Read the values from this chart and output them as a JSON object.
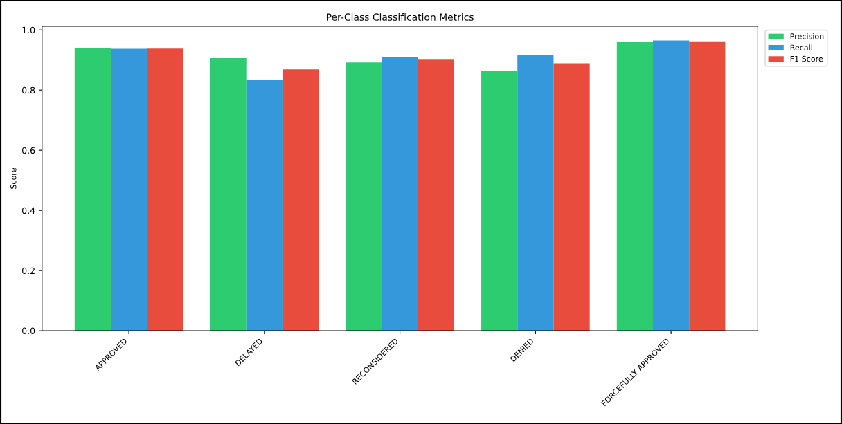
{
  "chart_data": {
    "type": "bar",
    "title": "Per-Class Classification Metrics",
    "ylabel": "Score",
    "categories": [
      "APPROVED",
      "DELAYED",
      "RECONSIDERED",
      "DENIED",
      "FORCEFULLY APPROVED"
    ],
    "series": [
      {
        "name": "Precision",
        "color": "#2ecc71",
        "values": [
          0.94,
          0.906,
          0.892,
          0.864,
          0.959
        ]
      },
      {
        "name": "Recall",
        "color": "#3498db",
        "values": [
          0.937,
          0.833,
          0.91,
          0.916,
          0.965
        ]
      },
      {
        "name": "F1 Score",
        "color": "#e74c3c",
        "values": [
          0.938,
          0.869,
          0.901,
          0.889,
          0.962
        ]
      }
    ],
    "ylim": [
      0,
      1.012
    ],
    "yticks": [
      {
        "value": 0,
        "label": "0.0"
      },
      {
        "value": 0.2,
        "label": "0.2"
      },
      {
        "value": 0.4,
        "label": "0.4"
      },
      {
        "value": 0.6,
        "label": "0.6"
      },
      {
        "value": 0.8,
        "label": "0.8"
      },
      {
        "value": 1.0,
        "label": "1.0"
      }
    ],
    "legend": "top right",
    "grid": false
  }
}
